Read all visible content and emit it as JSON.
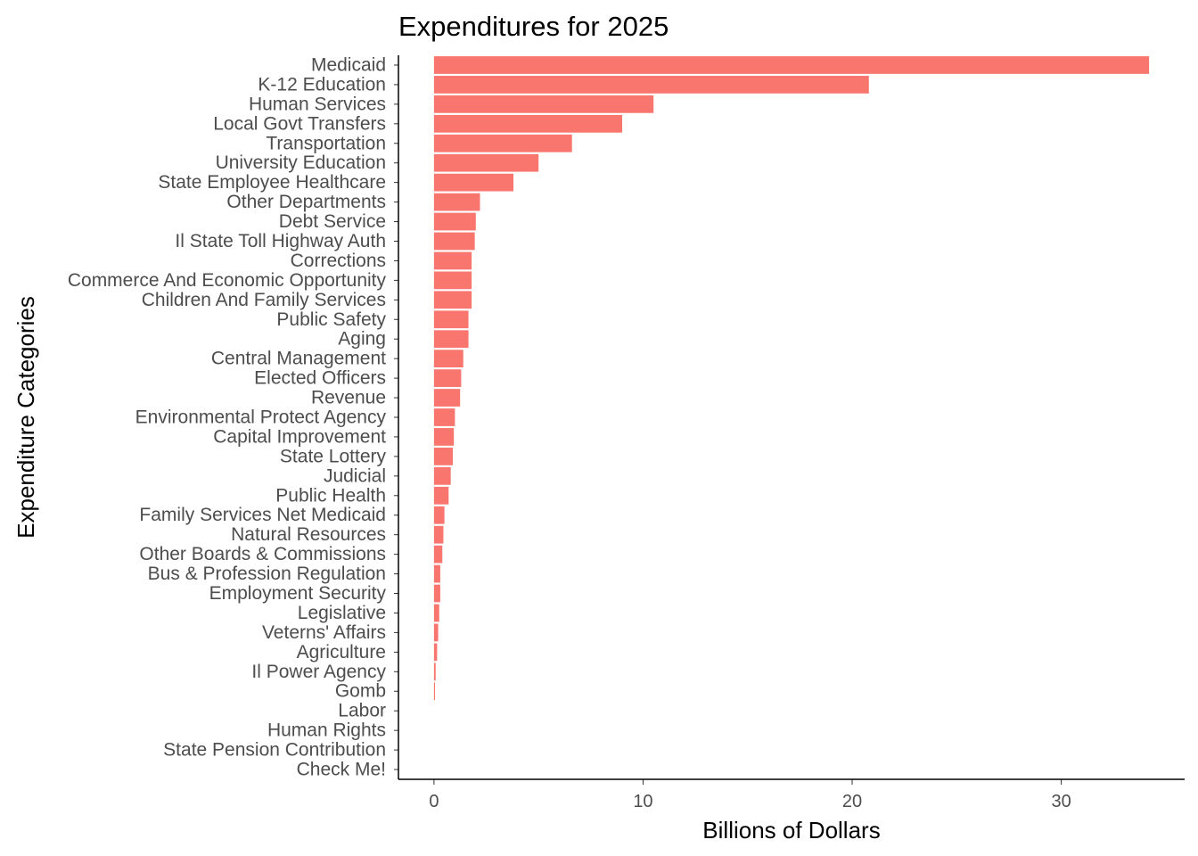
{
  "chart_data": {
    "type": "bar",
    "orientation": "horizontal",
    "title": "Expenditures for 2025",
    "xlabel": "Billions of Dollars",
    "ylabel": "Expenditure Categories",
    "xlim": [
      -1.7,
      35.9
    ],
    "xticks": [
      0,
      10,
      20,
      30
    ],
    "grid": false,
    "legend": "none",
    "bar_color": "#F8766D",
    "categories": [
      "Medicaid",
      "K-12 Education",
      "Human Services",
      "Local Govt Transfers",
      "Transportation",
      "University Education",
      "State Employee Healthcare",
      "Other Departments",
      "Debt Service",
      "Il State Toll Highway Auth",
      "Corrections",
      "Commerce And Economic Opportunity",
      "Children And Family Services",
      "Public Safety",
      "Aging",
      "Central Management",
      "Elected Officers",
      "Revenue",
      "Environmental Protect Agency",
      "Capital Improvement",
      "State Lottery",
      "Judicial",
      "Public Health",
      "Family Services Net Medicaid",
      "Natural Resources",
      "Other Boards & Commissions",
      "Bus & Profession Regulation",
      "Employment Security",
      "Legislative",
      "Veterns' Affairs",
      "Agriculture",
      "Il Power Agency",
      "Gomb",
      "Labor",
      "Human Rights",
      "State Pension Contribution",
      "Check Me!"
    ],
    "values": [
      34.2,
      20.8,
      10.5,
      9.0,
      6.6,
      5.0,
      3.8,
      2.2,
      2.0,
      1.95,
      1.8,
      1.8,
      1.8,
      1.65,
      1.65,
      1.4,
      1.3,
      1.25,
      1.0,
      0.95,
      0.9,
      0.8,
      0.7,
      0.5,
      0.45,
      0.4,
      0.3,
      0.3,
      0.25,
      0.2,
      0.15,
      0.08,
      0.05,
      0,
      0,
      0,
      0
    ]
  }
}
